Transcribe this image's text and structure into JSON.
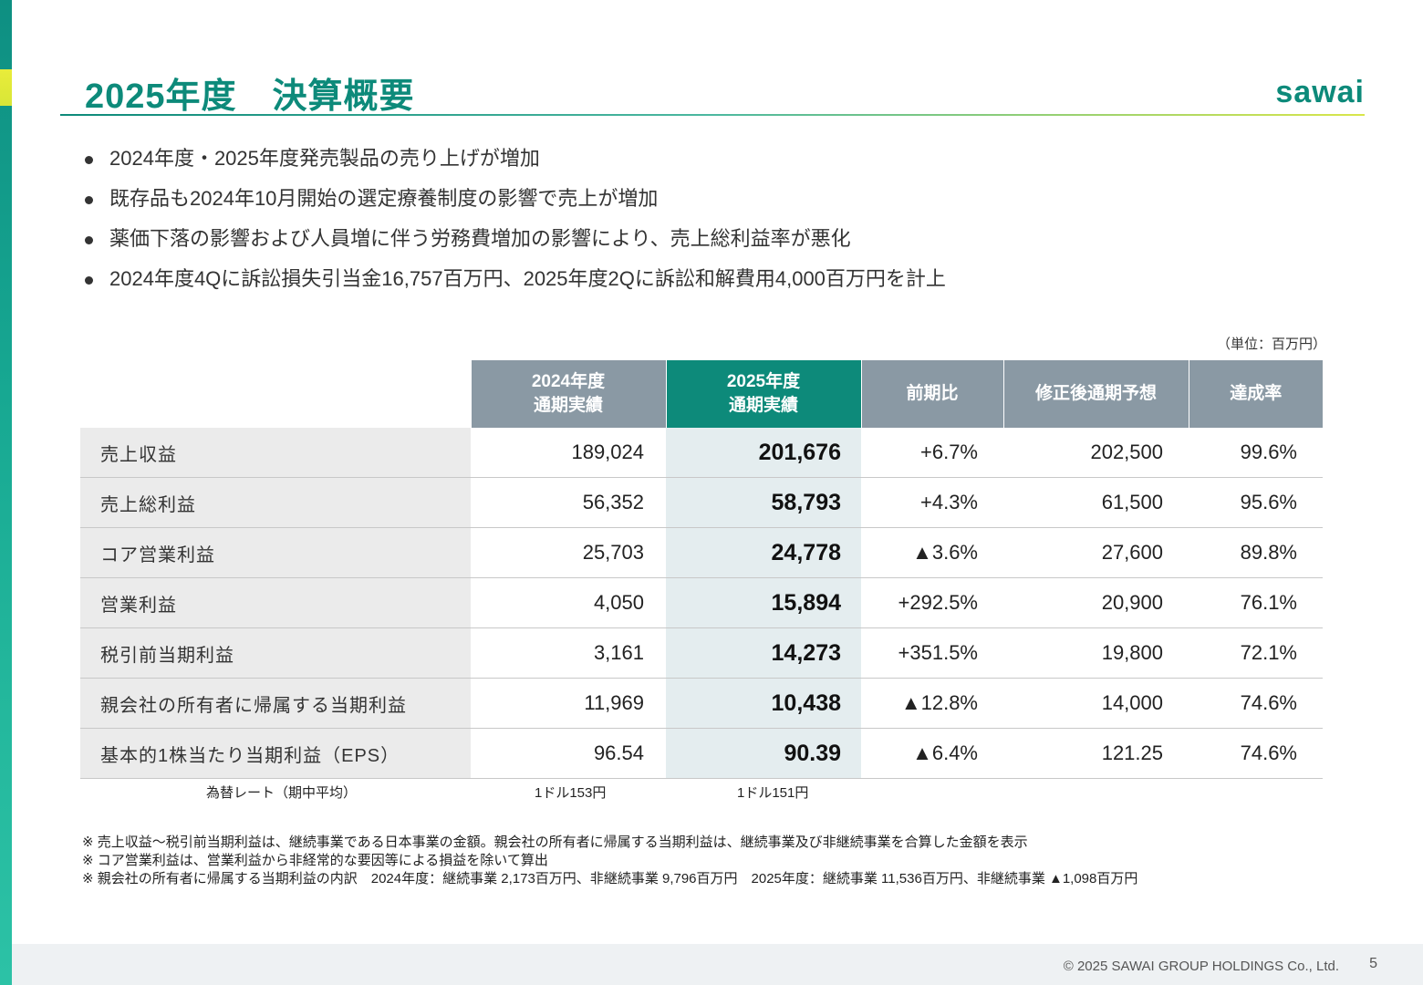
{
  "header": {
    "title": "2025年度　決算概要",
    "logo_text": "sawai"
  },
  "bullets": [
    "2024年度・2025年度発売製品の売り上げが増加",
    "既存品も2024年10月開始の選定療養制度の影響で売上が増加",
    "薬価下落の影響および人員増に伴う労務費増加の影響により、売上総利益率が悪化",
    "2024年度4Qに訴訟損失引当金16,757百万円、2025年度2Qに訴訟和解費用4,000百万円を計上"
  ],
  "unit_label": "（単位：百万円）",
  "table": {
    "headers": {
      "fy2024_line1": "2024年度",
      "fy2024_line2": "通期実績",
      "fy2025_line1": "2025年度",
      "fy2025_line2": "通期実績",
      "yoy": "前期比",
      "forecast": "修正後通期予想",
      "achievement": "達成率"
    },
    "rows": [
      {
        "label": "売上収益",
        "fy2024": "189,024",
        "fy2025": "201,676",
        "yoy": "+6.7%",
        "forecast": "202,500",
        "achievement": "99.6%"
      },
      {
        "label": "売上総利益",
        "fy2024": "56,352",
        "fy2025": "58,793",
        "yoy": "+4.3%",
        "forecast": "61,500",
        "achievement": "95.6%"
      },
      {
        "label": "コア営業利益",
        "fy2024": "25,703",
        "fy2025": "24,778",
        "yoy": "▲3.6%",
        "forecast": "27,600",
        "achievement": "89.8%"
      },
      {
        "label": "営業利益",
        "fy2024": "4,050",
        "fy2025": "15,894",
        "yoy": "+292.5%",
        "forecast": "20,900",
        "achievement": "76.1%"
      },
      {
        "label": "税引前当期利益",
        "fy2024": "3,161",
        "fy2025": "14,273",
        "yoy": "+351.5%",
        "forecast": "19,800",
        "achievement": "72.1%"
      },
      {
        "label": "親会社の所有者に帰属する当期利益",
        "fy2024": "11,969",
        "fy2025": "10,438",
        "yoy": "▲12.8%",
        "forecast": "14,000",
        "achievement": "74.6%"
      },
      {
        "label": "基本的1株当たり当期利益（EPS）",
        "fy2024": "96.54",
        "fy2025": "90.39",
        "yoy": "▲6.4%",
        "forecast": "121.25",
        "achievement": "74.6%"
      }
    ],
    "fx": {
      "label": "為替レート（期中平均）",
      "fy2024": "1ドル153円",
      "fy2025": "1ドル151円"
    }
  },
  "notes": [
    "※ 売上収益～税引前当期利益は、継続事業である日本事業の金額。親会社の所有者に帰属する当期利益は、継続事業及び非継続事業を合算した金額を表示",
    "※ コア営業利益は、営業利益から非経常的な要因等による損益を除いて算出",
    "※ 親会社の所有者に帰属する当期利益の内訳　2024年度：継続事業 2,173百万円、非継続事業 9,796百万円　2025年度：継続事業 11,536百万円、非継続事業 ▲1,098百万円"
  ],
  "footer": {
    "copyright": "© 2025 SAWAI GROUP HOLDINGS Co., Ltd.",
    "page": "5"
  },
  "colors": {
    "brand_green": "#0d8a7a",
    "header_gray": "#8a99a4",
    "label_bg": "#ebebeb",
    "highlight_col_bg": "#e4edef"
  }
}
